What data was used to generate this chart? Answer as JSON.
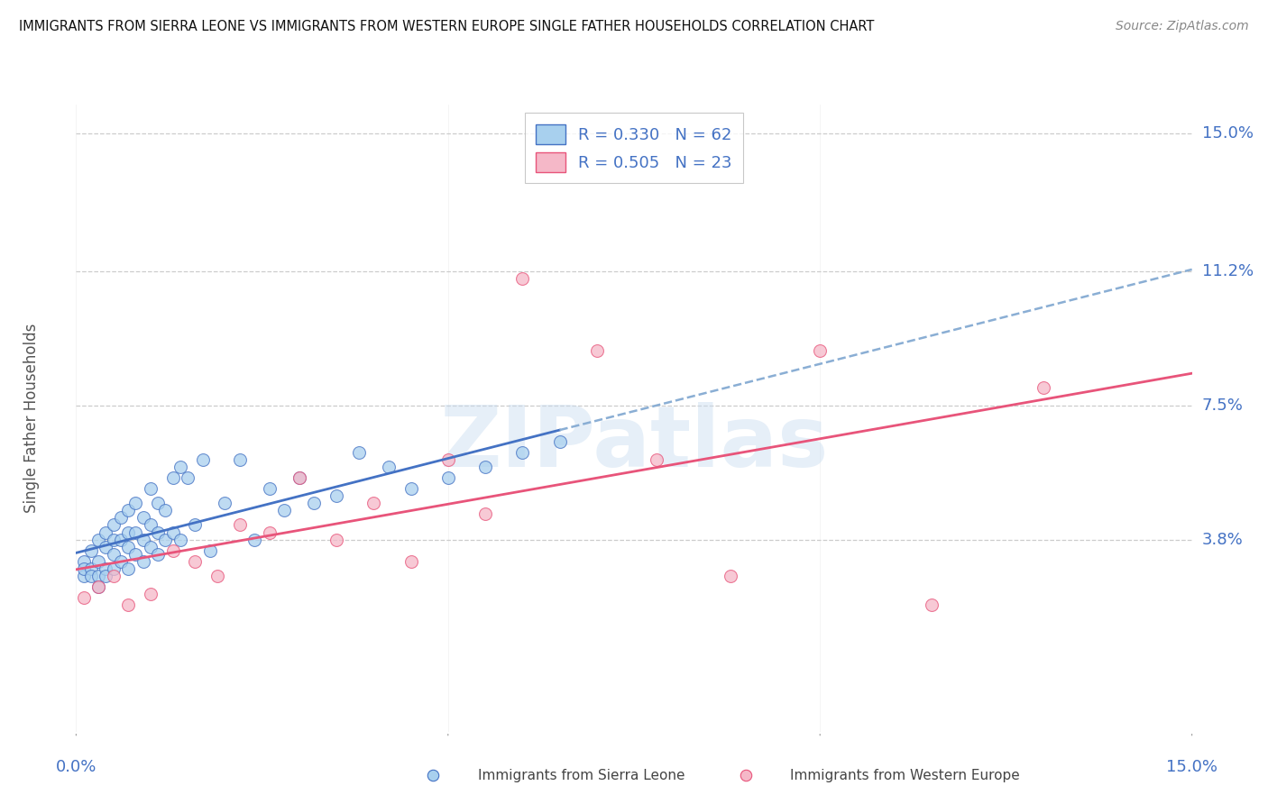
{
  "title": "IMMIGRANTS FROM SIERRA LEONE VS IMMIGRANTS FROM WESTERN EUROPE SINGLE FATHER HOUSEHOLDS CORRELATION CHART",
  "source": "Source: ZipAtlas.com",
  "ylabel": "Single Father Households",
  "ytick_labels": [
    "15.0%",
    "11.2%",
    "7.5%",
    "3.8%"
  ],
  "ytick_values": [
    0.15,
    0.112,
    0.075,
    0.038
  ],
  "xlim": [
    0.0,
    0.15
  ],
  "ylim": [
    -0.015,
    0.158
  ],
  "sierra_leone_color": "#A8D0EE",
  "western_europe_color": "#F5B8C8",
  "sierra_leone_line_color": "#4472C4",
  "western_europe_line_color": "#E8547A",
  "sierra_leone_dash_color": "#8AAED4",
  "legend_R_sierra": "R = 0.330",
  "legend_N_sierra": "N = 62",
  "legend_R_western": "R = 0.505",
  "legend_N_western": "N = 23",
  "watermark": "ZIPatlas",
  "sierra_leone_x": [
    0.001,
    0.001,
    0.001,
    0.002,
    0.002,
    0.002,
    0.003,
    0.003,
    0.003,
    0.003,
    0.004,
    0.004,
    0.004,
    0.004,
    0.005,
    0.005,
    0.005,
    0.005,
    0.006,
    0.006,
    0.006,
    0.007,
    0.007,
    0.007,
    0.007,
    0.008,
    0.008,
    0.008,
    0.009,
    0.009,
    0.009,
    0.01,
    0.01,
    0.01,
    0.011,
    0.011,
    0.011,
    0.012,
    0.012,
    0.013,
    0.013,
    0.014,
    0.014,
    0.015,
    0.016,
    0.017,
    0.018,
    0.02,
    0.022,
    0.024,
    0.026,
    0.028,
    0.03,
    0.032,
    0.035,
    0.038,
    0.042,
    0.045,
    0.05,
    0.055,
    0.06,
    0.065
  ],
  "sierra_leone_y": [
    0.028,
    0.032,
    0.03,
    0.035,
    0.03,
    0.028,
    0.038,
    0.032,
    0.028,
    0.025,
    0.04,
    0.036,
    0.03,
    0.028,
    0.042,
    0.038,
    0.034,
    0.03,
    0.044,
    0.038,
    0.032,
    0.046,
    0.04,
    0.036,
    0.03,
    0.048,
    0.04,
    0.034,
    0.044,
    0.038,
    0.032,
    0.052,
    0.042,
    0.036,
    0.048,
    0.04,
    0.034,
    0.046,
    0.038,
    0.055,
    0.04,
    0.058,
    0.038,
    0.055,
    0.042,
    0.06,
    0.035,
    0.048,
    0.06,
    0.038,
    0.052,
    0.046,
    0.055,
    0.048,
    0.05,
    0.062,
    0.058,
    0.052,
    0.055,
    0.058,
    0.062,
    0.065
  ],
  "western_europe_x": [
    0.001,
    0.003,
    0.005,
    0.007,
    0.01,
    0.013,
    0.016,
    0.019,
    0.022,
    0.026,
    0.03,
    0.035,
    0.04,
    0.045,
    0.05,
    0.055,
    0.06,
    0.07,
    0.078,
    0.088,
    0.1,
    0.115,
    0.13
  ],
  "western_europe_y": [
    0.022,
    0.025,
    0.028,
    0.02,
    0.023,
    0.035,
    0.032,
    0.028,
    0.042,
    0.04,
    0.055,
    0.038,
    0.048,
    0.032,
    0.06,
    0.045,
    0.11,
    0.09,
    0.06,
    0.028,
    0.09,
    0.02,
    0.08
  ]
}
